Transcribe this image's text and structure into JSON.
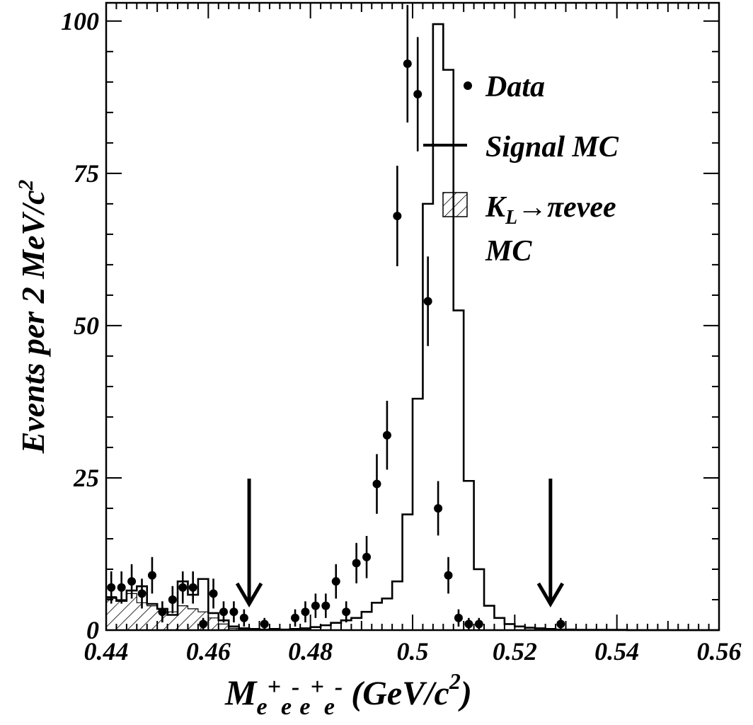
{
  "chart_data": {
    "type": "histogram",
    "ylabel": "Events per 2 MeV/c",
    "ylabel_sup": "2",
    "xlabel": {
      "M": "M",
      "sub": "e",
      "sup1": "+",
      "sup2": "-",
      "sup3": "+",
      "sup4": "-",
      "unit_open": " (GeV/c",
      "unit_sup": "2",
      "unit_close": ")"
    },
    "xlim": [
      0.44,
      0.56
    ],
    "ylim": [
      0,
      103
    ],
    "x_ticks": [
      0.44,
      0.46,
      0.48,
      0.5,
      0.52,
      0.54,
      0.56
    ],
    "x_tick_labels": [
      "0.44",
      "0.46",
      "0.48",
      "0.5",
      "0.52",
      "0.54",
      "0.56"
    ],
    "y_ticks": [
      0,
      25,
      50,
      75,
      100
    ],
    "y_tick_labels": [
      "0",
      "25",
      "50",
      "75",
      "100"
    ],
    "bin_width": 0.002,
    "legend": {
      "position": "top-right",
      "entries": [
        {
          "marker": "dot",
          "label": "Data"
        },
        {
          "marker": "line",
          "label": "Signal MC"
        },
        {
          "marker": "hatch",
          "label_main": "K",
          "label_sub": "L",
          "label_rest": "→πeνee",
          "label_line2": "MC"
        }
      ]
    },
    "series": [
      {
        "name": "Data",
        "kind": "points_with_errors",
        "points": [
          {
            "x": 0.441,
            "y": 7
          },
          {
            "x": 0.443,
            "y": 7
          },
          {
            "x": 0.445,
            "y": 8
          },
          {
            "x": 0.447,
            "y": 6
          },
          {
            "x": 0.449,
            "y": 9
          },
          {
            "x": 0.451,
            "y": 3
          },
          {
            "x": 0.453,
            "y": 5
          },
          {
            "x": 0.455,
            "y": 7
          },
          {
            "x": 0.457,
            "y": 7
          },
          {
            "x": 0.459,
            "y": 1
          },
          {
            "x": 0.461,
            "y": 6
          },
          {
            "x": 0.463,
            "y": 3
          },
          {
            "x": 0.465,
            "y": 3
          },
          {
            "x": 0.467,
            "y": 2
          },
          {
            "x": 0.471,
            "y": 1
          },
          {
            "x": 0.477,
            "y": 2
          },
          {
            "x": 0.479,
            "y": 3
          },
          {
            "x": 0.481,
            "y": 4
          },
          {
            "x": 0.483,
            "y": 4
          },
          {
            "x": 0.485,
            "y": 8
          },
          {
            "x": 0.487,
            "y": 3
          },
          {
            "x": 0.489,
            "y": 11
          },
          {
            "x": 0.491,
            "y": 12
          },
          {
            "x": 0.493,
            "y": 24
          },
          {
            "x": 0.495,
            "y": 32
          },
          {
            "x": 0.497,
            "y": 68
          },
          {
            "x": 0.499,
            "y": 93
          },
          {
            "x": 0.501,
            "y": 88
          },
          {
            "x": 0.503,
            "y": 54
          },
          {
            "x": 0.505,
            "y": 20
          },
          {
            "x": 0.507,
            "y": 9
          },
          {
            "x": 0.509,
            "y": 2
          },
          {
            "x": 0.511,
            "y": 1
          },
          {
            "x": 0.513,
            "y": 1
          },
          {
            "x": 0.529,
            "y": 1
          }
        ]
      },
      {
        "name": "Signal MC",
        "kind": "step_histogram",
        "bin_start": 0.44,
        "values": [
          5.3,
          4.8,
          6.5,
          7.2,
          4.3,
          3.5,
          2.5,
          8.0,
          5.8,
          8.4,
          2.8,
          1.6,
          0.6,
          0.3,
          0.2,
          0.1,
          0.2,
          0.1,
          0.2,
          0.3,
          0.5,
          0.8,
          1.2,
          1.6,
          2.0,
          3.0,
          4.5,
          5.2,
          8.0,
          19.0,
          38.0,
          70.0,
          99.5,
          92.0,
          52.5,
          24.5,
          10.0,
          4.0,
          2.0,
          1.0,
          0.6,
          0.4,
          0.3,
          0.2,
          0.1,
          0.1,
          0.05,
          0.05,
          0.05,
          0.05,
          0.05,
          0.0,
          0.0,
          0.0,
          0.0,
          0.0,
          0.0,
          0.0,
          0.0,
          0.0
        ]
      },
      {
        "name": "KL->pievee MC",
        "kind": "hatched_histogram",
        "bin_start": 0.44,
        "values": [
          5.5,
          5.0,
          6.0,
          4.5,
          4.0,
          3.5,
          3.0,
          4.0,
          3.5,
          3.0,
          2.0,
          1.0,
          0.3
        ]
      }
    ],
    "cut_arrows_x": [
      0.468,
      0.527
    ]
  }
}
